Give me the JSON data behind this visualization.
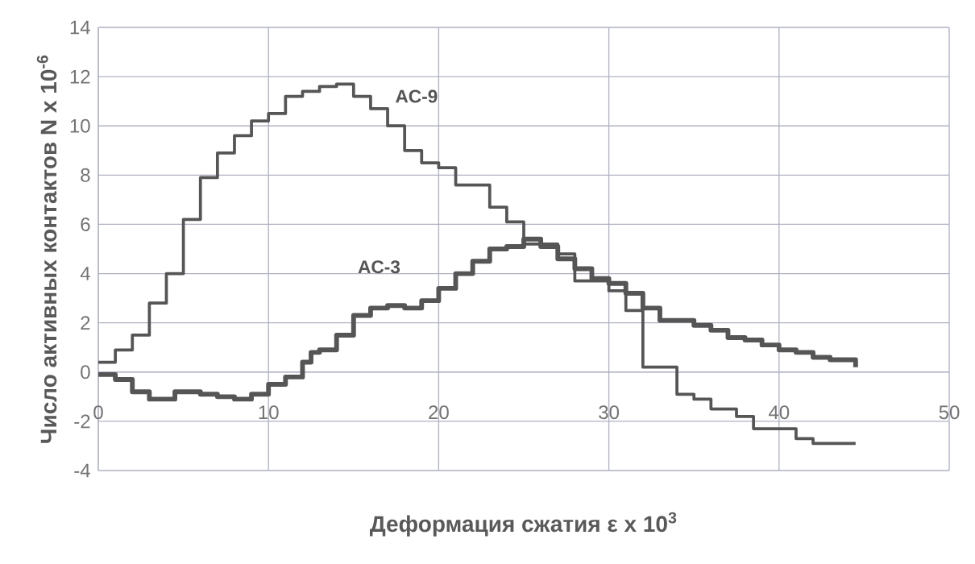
{
  "chart_data": {
    "type": "step",
    "xlabel": "Деформация сжатия ε x 10$^{3}$",
    "ylabel": "Число активных контактов N x 10$^{-6}$",
    "xlim": [
      0,
      50
    ],
    "xticks": [
      0,
      10,
      20,
      30,
      40,
      50
    ],
    "ylim": [
      -4,
      14
    ],
    "yticks": [
      -4,
      -2,
      0,
      2,
      4,
      6,
      8,
      10,
      12,
      14
    ],
    "grid": true,
    "legend": false,
    "marker": "none",
    "line_style": "solid",
    "series": [
      {
        "name": "AC-9",
        "color": "#555555",
        "x": [
          0,
          1,
          2,
          3,
          4,
          5,
          6,
          7,
          8,
          9,
          10,
          11,
          12,
          13,
          14,
          15,
          16,
          17,
          18,
          19,
          20,
          21,
          23,
          24,
          25,
          27,
          28,
          29,
          30,
          31,
          32,
          34,
          35,
          36,
          37.5,
          38.5,
          41,
          42,
          44.5
        ],
        "values": [
          0.4,
          0.9,
          1.5,
          2.8,
          4.0,
          6.2,
          7.9,
          8.9,
          9.6,
          10.2,
          10.5,
          11.2,
          11.4,
          11.6,
          11.7,
          11.2,
          10.7,
          10.0,
          9.0,
          8.5,
          8.3,
          7.6,
          6.7,
          6.1,
          5.2,
          4.8,
          3.7,
          3.7,
          3.3,
          2.5,
          0.2,
          -0.9,
          -1.1,
          -1.5,
          -1.8,
          -2.3,
          -2.7,
          -2.9,
          -2.9
        ]
      },
      {
        "name": "AC-3",
        "color": "#555555",
        "x": [
          0,
          1,
          2,
          3,
          4.5,
          6,
          7,
          8,
          9,
          10,
          11,
          12,
          12.5,
          13,
          14,
          15,
          16,
          17,
          18,
          19,
          20,
          21,
          22,
          23,
          24,
          25,
          26,
          27,
          28,
          29,
          30,
          31,
          32,
          33,
          35,
          36,
          37,
          38,
          39,
          40,
          41,
          42,
          43,
          44.5
        ],
        "values": [
          -0.1,
          -0.3,
          -0.8,
          -1.1,
          -0.8,
          -0.9,
          -1.0,
          -1.1,
          -0.9,
          -0.5,
          -0.2,
          0.4,
          0.8,
          0.9,
          1.5,
          2.3,
          2.6,
          2.7,
          2.6,
          2.9,
          3.4,
          4.0,
          4.5,
          5.0,
          5.1,
          5.4,
          5.1,
          4.6,
          4.2,
          3.8,
          3.6,
          3.2,
          2.6,
          2.1,
          1.9,
          1.7,
          1.4,
          1.3,
          1.1,
          0.9,
          0.8,
          0.6,
          0.5,
          0.2
        ]
      }
    ]
  }
}
